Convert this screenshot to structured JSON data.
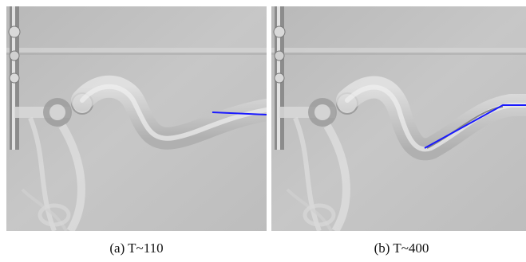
{
  "figure": {
    "panels": [
      {
        "caption": "(a)  T~110",
        "tracking_line_color": "#1a1aff"
      },
      {
        "caption": "(b)  T~400",
        "tracking_line_color": "#1a1aff"
      }
    ],
    "background_color": "#c4c4c4"
  }
}
